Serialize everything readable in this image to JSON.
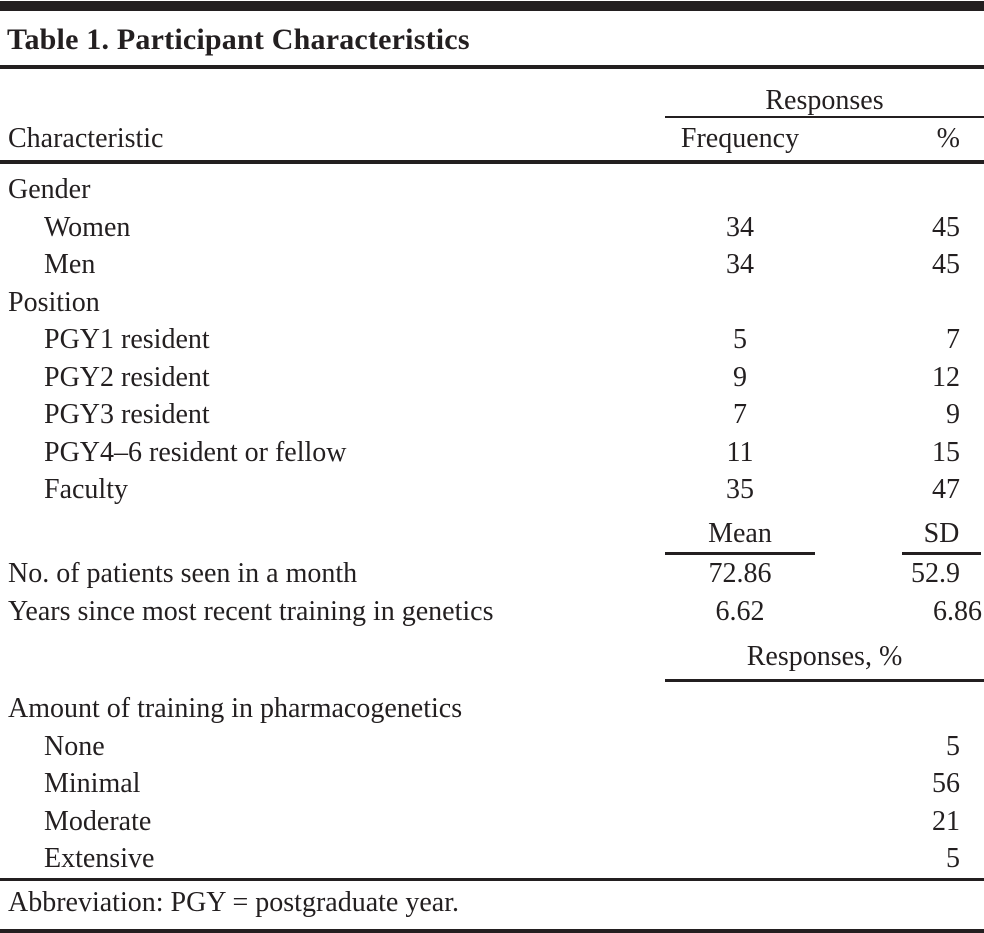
{
  "title": "Table 1. Participant Characteristics",
  "colors": {
    "ink": "#231f20",
    "background": "#ffffff"
  },
  "header": {
    "responses": "Responses",
    "characteristic": "Characteristic",
    "frequency": "Frequency",
    "percent": "%"
  },
  "stats_header": {
    "mean": "Mean",
    "sd": "SD"
  },
  "responses_percent_header": "Responses, %",
  "rows": [
    {
      "type": "group",
      "label": "Gender"
    },
    {
      "type": "item",
      "label": "Women",
      "frequency": "34",
      "percent": "45"
    },
    {
      "type": "item",
      "label": "Men",
      "frequency": "34",
      "percent": "45"
    },
    {
      "type": "group",
      "label": "Position"
    },
    {
      "type": "item",
      "label": "PGY1 resident",
      "frequency": "5",
      "percent": "7"
    },
    {
      "type": "item",
      "label": "PGY2 resident",
      "frequency": "9",
      "percent": "12"
    },
    {
      "type": "item",
      "label": "PGY3 resident",
      "frequency": "7",
      "percent": "9"
    },
    {
      "type": "item",
      "label": "PGY4–6 resident or fellow",
      "frequency": "11",
      "percent": "15"
    },
    {
      "type": "item",
      "label": "Faculty",
      "frequency": "35",
      "percent": "47"
    },
    {
      "type": "stat",
      "label": "No. of patients seen in a month",
      "mean": "72.86",
      "sd": "52.9"
    },
    {
      "type": "stat",
      "label": "Years since most recent training in genetics",
      "mean": "6.62",
      "sd": "6.86"
    },
    {
      "type": "group",
      "label": "Amount of training in pharmacogenetics"
    },
    {
      "type": "pct",
      "label": "None",
      "percent": "5"
    },
    {
      "type": "pct",
      "label": "Minimal",
      "percent": "56"
    },
    {
      "type": "pct",
      "label": "Moderate",
      "percent": "21"
    },
    {
      "type": "pct",
      "label": "Extensive",
      "percent": "5"
    }
  ],
  "footnote": "Abbreviation: PGY = postgraduate year."
}
